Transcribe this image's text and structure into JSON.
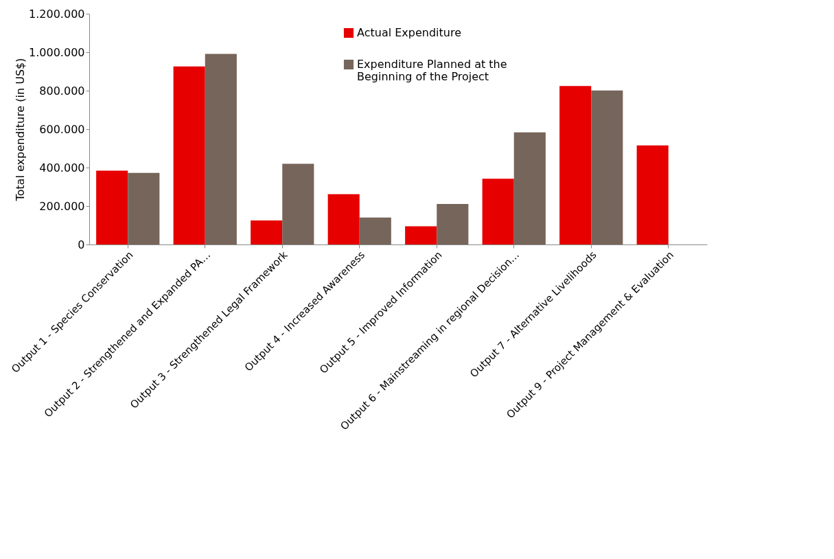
{
  "chart_data": {
    "type": "bar",
    "ylabel": "Total expenditure (in US$)",
    "categories": [
      "Output 1  - Species Conservation",
      "Output 2 - Strengthened and Expanded PA…",
      "Output 3  - Strengthened Legal Framework",
      "Output 4 - Increased Awareness",
      "Output 5 - Improved Information",
      "Output 6 - Mainstreaming in regional Decision…",
      "Output 7 - Alternative Livelihoods",
      "Output 9 - Project Management & Evaluation"
    ],
    "series": [
      {
        "name": "Actual Expenditure",
        "color": "#e60000",
        "values": [
          384000,
          926000,
          125000,
          262000,
          95000,
          342000,
          824000,
          515000
        ]
      },
      {
        "name": "Expenditure Planned at the Beginning of the Project",
        "color": "#76655a",
        "values": [
          372000,
          991000,
          420000,
          140000,
          211000,
          583000,
          801000,
          null
        ]
      }
    ],
    "ylim": [
      0,
      1200000
    ],
    "yticks": [
      0,
      {
        "value": 200000,
        "label": "200.000"
      },
      {
        "value": 400000,
        "label": "400.000"
      },
      {
        "value": 600000,
        "label": "600.000"
      },
      {
        "value": 800000,
        "label": "800.000"
      },
      {
        "value": 1000000,
        "label": "1.000.000"
      },
      {
        "value": 1200000,
        "label": "1.200.000"
      }
    ],
    "grid": false,
    "legend": "top"
  }
}
